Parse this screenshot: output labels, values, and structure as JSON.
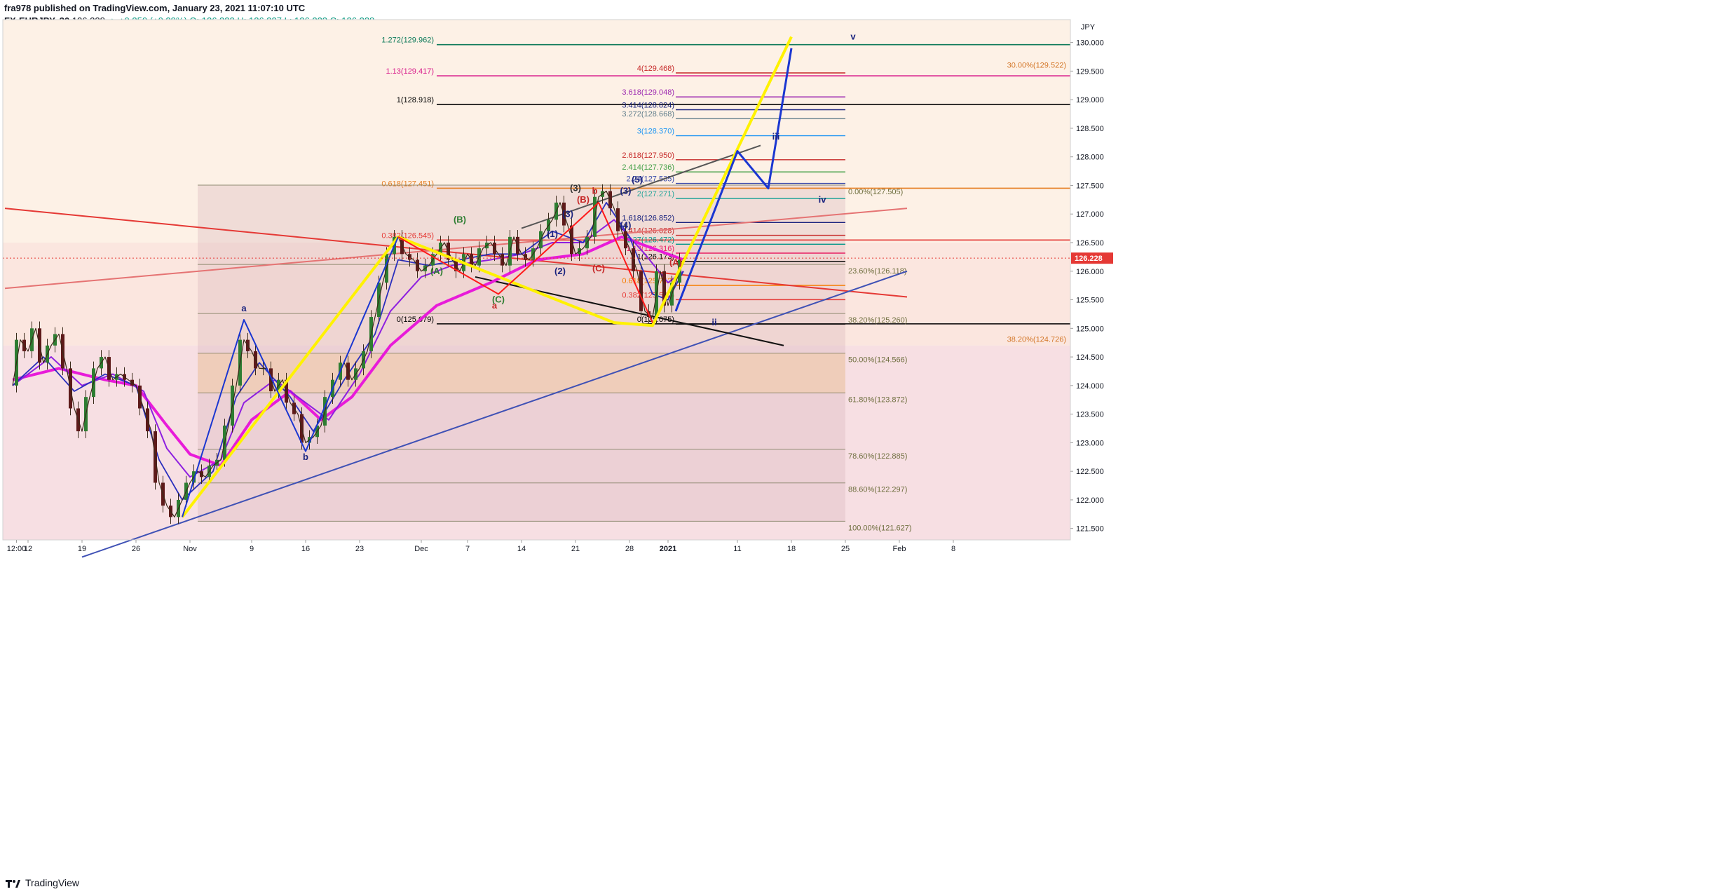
{
  "header": {
    "publisher_line": "fra978 published on TradingView.com, January 23, 2021 11:07:10 UTC",
    "symbol": "FX:EURJPY, 30",
    "last": "126.228",
    "change": "▲ +0.350 (+0.28%)",
    "open": "O: 126.322",
    "high": "H: 126.337",
    "low": "L: 126.223",
    "close": "C: 126.228"
  },
  "footer": {
    "brand": "TradingView"
  },
  "chart_data": {
    "type": "line",
    "currency": "JPY",
    "last_price": 126.228,
    "last_price_label": "126.228",
    "ylim": [
      121.3,
      130.4
    ],
    "y_ticks": [
      121.5,
      122.0,
      122.5,
      123.0,
      123.5,
      124.0,
      124.5,
      125.0,
      125.5,
      126.0,
      126.5,
      127.0,
      127.5,
      128.0,
      128.5,
      129.0,
      129.5,
      130.0
    ],
    "y_tick_labels": [
      "121.500",
      "122.000",
      "122.500",
      "123.000",
      "123.500",
      "124.000",
      "124.500",
      "125.000",
      "125.500",
      "126.000",
      "126.500",
      "127.000",
      "127.500",
      "128.000",
      "128.500",
      "129.000",
      "129.500",
      "130.000"
    ],
    "x_ticks": [
      {
        "label": "12:00",
        "d": 0.5
      },
      {
        "label": "12",
        "d": 2
      },
      {
        "label": "19",
        "d": 9
      },
      {
        "label": "26",
        "d": 16
      },
      {
        "label": "Nov",
        "d": 23
      },
      {
        "label": "9",
        "d": 31
      },
      {
        "label": "16",
        "d": 38
      },
      {
        "label": "23",
        "d": 45
      },
      {
        "label": "Dec",
        "d": 53
      },
      {
        "label": "7",
        "d": 59
      },
      {
        "label": "14",
        "d": 66
      },
      {
        "label": "21",
        "d": 73
      },
      {
        "label": "28",
        "d": 80
      },
      {
        "label": "2021",
        "d": 85
      },
      {
        "label": "11",
        "d": 94
      },
      {
        "label": "18",
        "d": 101
      },
      {
        "label": "25",
        "d": 108
      },
      {
        "label": "Feb",
        "d": 115
      },
      {
        "label": "8",
        "d": 122
      }
    ],
    "price_series": {
      "name": "EURJPY",
      "points": [
        [
          0,
          124.0
        ],
        [
          1,
          124.8
        ],
        [
          2,
          124.6
        ],
        [
          3,
          125.0
        ],
        [
          4,
          124.4
        ],
        [
          5,
          124.7
        ],
        [
          6,
          124.9
        ],
        [
          7,
          124.3
        ],
        [
          8,
          123.6
        ],
        [
          9,
          123.2
        ],
        [
          10,
          123.8
        ],
        [
          11,
          124.3
        ],
        [
          12,
          124.5
        ],
        [
          13,
          124.1
        ],
        [
          14,
          124.2
        ],
        [
          15,
          124.1
        ],
        [
          16,
          124.0
        ],
        [
          17,
          123.6
        ],
        [
          18,
          123.2
        ],
        [
          19,
          122.3
        ],
        [
          20,
          121.9
        ],
        [
          21,
          121.7
        ],
        [
          22,
          122.0
        ],
        [
          23,
          122.3
        ],
        [
          24,
          122.5
        ],
        [
          25,
          122.4
        ],
        [
          26,
          122.6
        ],
        [
          27,
          122.7
        ],
        [
          28,
          123.3
        ],
        [
          29,
          124.0
        ],
        [
          30,
          124.8
        ],
        [
          31,
          124.6
        ],
        [
          32,
          124.3
        ],
        [
          33,
          124.3
        ],
        [
          34,
          123.9
        ],
        [
          35,
          124.1
        ],
        [
          36,
          123.7
        ],
        [
          37,
          123.5
        ],
        [
          38,
          123.0
        ],
        [
          39,
          123.1
        ],
        [
          40,
          123.3
        ],
        [
          41,
          123.8
        ],
        [
          42,
          124.1
        ],
        [
          43,
          124.4
        ],
        [
          44,
          124.1
        ],
        [
          45,
          124.3
        ],
        [
          46,
          124.6
        ],
        [
          47,
          125.2
        ],
        [
          48,
          125.8
        ],
        [
          49,
          126.3
        ],
        [
          50,
          126.6
        ],
        [
          51,
          126.3
        ],
        [
          52,
          126.2
        ],
        [
          53,
          126.0
        ],
        [
          54,
          126.1
        ],
        [
          55,
          126.3
        ],
        [
          56,
          126.5
        ],
        [
          57,
          126.2
        ],
        [
          58,
          126.0
        ],
        [
          59,
          126.3
        ],
        [
          60,
          126.1
        ],
        [
          61,
          126.4
        ],
        [
          62,
          126.5
        ],
        [
          63,
          126.3
        ],
        [
          64,
          126.1
        ],
        [
          65,
          126.6
        ],
        [
          66,
          126.3
        ],
        [
          67,
          126.2
        ],
        [
          68,
          126.4
        ],
        [
          69,
          126.7
        ],
        [
          70,
          126.9
        ],
        [
          71,
          127.2
        ],
        [
          72,
          126.8
        ],
        [
          73,
          126.3
        ],
        [
          74,
          126.4
        ],
        [
          75,
          126.6
        ],
        [
          76,
          127.3
        ],
        [
          77,
          127.4
        ],
        [
          78,
          127.1
        ],
        [
          79,
          126.7
        ],
        [
          80,
          126.4
        ],
        [
          81,
          126.0
        ],
        [
          82,
          125.3
        ],
        [
          83,
          125.2
        ],
        [
          84,
          126.0
        ],
        [
          85,
          125.4
        ],
        [
          86,
          125.8
        ],
        [
          87,
          126.2
        ]
      ]
    },
    "ma_fast": {
      "name": "MA fast",
      "color": "#2a2fbd",
      "points": [
        [
          0,
          124.0
        ],
        [
          4,
          124.5
        ],
        [
          8,
          123.9
        ],
        [
          12,
          124.2
        ],
        [
          16,
          124.0
        ],
        [
          19,
          122.7
        ],
        [
          22,
          122.0
        ],
        [
          26,
          122.5
        ],
        [
          29,
          123.8
        ],
        [
          32,
          124.4
        ],
        [
          36,
          123.8
        ],
        [
          39,
          123.2
        ],
        [
          43,
          124.1
        ],
        [
          47,
          124.9
        ],
        [
          50,
          126.2
        ],
        [
          54,
          126.1
        ],
        [
          58,
          126.2
        ],
        [
          62,
          126.3
        ],
        [
          66,
          126.3
        ],
        [
          70,
          126.7
        ],
        [
          74,
          126.5
        ],
        [
          77,
          127.2
        ],
        [
          80,
          126.6
        ],
        [
          83,
          125.6
        ],
        [
          85,
          125.5
        ],
        [
          87,
          126.0
        ]
      ]
    },
    "ma_mid": {
      "name": "MA mid",
      "color": "#8e1fe0",
      "points": [
        [
          0,
          124.0
        ],
        [
          5,
          124.5
        ],
        [
          9,
          124.0
        ],
        [
          13,
          124.2
        ],
        [
          17,
          123.9
        ],
        [
          20,
          122.9
        ],
        [
          23,
          122.4
        ],
        [
          27,
          122.7
        ],
        [
          30,
          123.7
        ],
        [
          34,
          124.1
        ],
        [
          38,
          123.7
        ],
        [
          41,
          123.4
        ],
        [
          45,
          124.2
        ],
        [
          49,
          125.3
        ],
        [
          53,
          125.9
        ],
        [
          57,
          126.1
        ],
        [
          62,
          126.2
        ],
        [
          66,
          126.3
        ],
        [
          70,
          126.5
        ],
        [
          74,
          126.5
        ],
        [
          78,
          126.9
        ],
        [
          82,
          126.3
        ],
        [
          85,
          125.8
        ],
        [
          87,
          126.0
        ]
      ]
    },
    "ma_slow": {
      "name": "MA slow",
      "color": "#e81bd9",
      "points": [
        [
          0,
          124.1
        ],
        [
          6,
          124.3
        ],
        [
          12,
          124.1
        ],
        [
          16,
          124.0
        ],
        [
          20,
          123.3
        ],
        [
          23,
          122.8
        ],
        [
          27,
          122.6
        ],
        [
          31,
          123.4
        ],
        [
          36,
          123.9
        ],
        [
          40,
          123.4
        ],
        [
          44,
          123.8
        ],
        [
          49,
          124.7
        ],
        [
          55,
          125.4
        ],
        [
          62,
          125.8
        ],
        [
          68,
          126.2
        ],
        [
          74,
          126.3
        ],
        [
          79,
          126.6
        ],
        [
          83,
          126.4
        ],
        [
          87,
          126.2
        ]
      ]
    },
    "trend_lines": [
      {
        "name": "red-descending",
        "color": "#e53935",
        "from": [
          -1,
          127.1
        ],
        "to": [
          116,
          125.55
        ]
      },
      {
        "name": "red-ascending",
        "color": "#e57373",
        "from": [
          -1,
          125.7
        ],
        "to": [
          116,
          127.1
        ]
      },
      {
        "name": "blue-support",
        "color": "#3f51b5",
        "from": [
          9,
          121.0
        ],
        "to": [
          116,
          126.0
        ]
      },
      {
        "name": "upper-channel",
        "color": "#555555",
        "from": [
          66,
          126.75
        ],
        "to": [
          97,
          128.2
        ]
      },
      {
        "name": "lower-channel",
        "color": "#111111",
        "from": [
          60,
          125.9
        ],
        "to": [
          100,
          124.7
        ]
      }
    ],
    "fib_levels": [
      {
        "label": "1.272(129.962)",
        "value": 129.962,
        "color": "#0e7a5a"
      },
      {
        "label": "1.13(129.417)",
        "value": 129.417,
        "color": "#d81b8b"
      },
      {
        "label": "1(128.918)",
        "value": 128.918,
        "color": "#000000"
      },
      {
        "label": "0.618(127.451)",
        "value": 127.451,
        "color": "#e67e22"
      },
      {
        "label": "0.382(126.545)",
        "value": 126.545,
        "color": "#e53935"
      },
      {
        "label": "0(125.079)",
        "value": 125.079,
        "color": "#000000"
      }
    ],
    "ext_levels": [
      {
        "label": "4(129.468)",
        "value": 129.468,
        "color": "#c62828"
      },
      {
        "label": "3.618(129.048)",
        "value": 129.048,
        "color": "#9c27b0"
      },
      {
        "label": "3.414(128.824)",
        "value": 128.824,
        "color": "#1a237e"
      },
      {
        "label": "3.272(128.668)",
        "value": 128.668,
        "color": "#607d8b"
      },
      {
        "label": "3(128.370)",
        "value": 128.37,
        "color": "#2196f3"
      },
      {
        "label": "2.618(127.950)",
        "value": 127.95,
        "color": "#c62828"
      },
      {
        "label": "2.414(127.736)",
        "value": 127.736,
        "color": "#43a047"
      },
      {
        "label": "2.24(127.535)",
        "value": 127.535,
        "color": "#3949ab"
      },
      {
        "label": "2(127.271)",
        "value": 127.271,
        "color": "#26a69a"
      },
      {
        "label": "1.618(126.852)",
        "value": 126.852,
        "color": "#1a237e"
      },
      {
        "label": "1.414(126.628)",
        "value": 126.628,
        "color": "#c62828"
      },
      {
        "label": "1.27(126.472)",
        "value": 126.472,
        "color": "#009688"
      },
      {
        "label": "1.13(126.316)",
        "value": 126.316,
        "color": "#e91e63"
      },
      {
        "label": "1(126.173)",
        "value": 126.173,
        "color": "#000000"
      },
      {
        "label": "0.618(125.752)",
        "value": 125.752,
        "color": "#f57c00"
      },
      {
        "label": "0.382(125.502)",
        "value": 125.502,
        "color": "#e53935"
      },
      {
        "label": "0(125.075)",
        "value": 125.075,
        "color": "#000000"
      }
    ],
    "retrace_levels": [
      {
        "label": "0.00%(127.505)",
        "value": 127.505
      },
      {
        "label": "23.60%(126.118)",
        "value": 126.118
      },
      {
        "label": "38.20%(125.260)",
        "value": 125.26
      },
      {
        "label": "50.00%(124.566)",
        "value": 124.566
      },
      {
        "label": "61.80%(123.872)",
        "value": 123.872
      },
      {
        "label": "78.60%(122.885)",
        "value": 122.885
      },
      {
        "label": "88.60%(122.297)",
        "value": 122.297
      },
      {
        "label": "100.00%(121.627)",
        "value": 121.627
      }
    ],
    "upper_right_labels": [
      {
        "label": "30.00%(129.522)",
        "value": 129.522
      },
      {
        "label": "38.20%(124.726)",
        "value": 124.726
      }
    ],
    "wave_paths": {
      "yellow": [
        [
          22,
          121.7
        ],
        [
          50,
          126.6
        ],
        [
          78,
          125.1
        ],
        [
          83,
          125.05
        ],
        [
          101,
          130.1
        ]
      ],
      "blue_abc": [
        [
          22,
          121.7
        ],
        [
          30,
          125.15
        ],
        [
          38,
          122.85
        ],
        [
          50,
          126.6
        ]
      ],
      "red_abc": [
        [
          50,
          126.6
        ],
        [
          63,
          125.6
        ],
        [
          76,
          127.2
        ],
        [
          83,
          125.1
        ]
      ],
      "blue_projection": [
        [
          86,
          125.3
        ],
        [
          94,
          128.1
        ],
        [
          98,
          127.45
        ],
        [
          101,
          129.9
        ]
      ]
    },
    "wave_labels": [
      {
        "text": "a",
        "d": 30,
        "v": 125.3,
        "color": "#1a237e"
      },
      {
        "text": "b",
        "d": 38,
        "v": 122.7,
        "color": "#1a237e"
      },
      {
        "text": "a",
        "d": 62.5,
        "v": 125.35,
        "color": "#c62828"
      },
      {
        "text": "b",
        "d": 75.5,
        "v": 127.35,
        "color": "#c62828"
      },
      {
        "text": "(A)",
        "d": 55,
        "v": 125.95,
        "color": "#2e7d32"
      },
      {
        "text": "(B)",
        "d": 58,
        "v": 126.85,
        "color": "#2e7d32"
      },
      {
        "text": "(C)",
        "d": 63,
        "v": 125.45,
        "color": "#2e7d32"
      },
      {
        "text": "(1)",
        "d": 70,
        "v": 126.6,
        "color": "#1a237e"
      },
      {
        "text": "(2)",
        "d": 71,
        "v": 125.95,
        "color": "#1a237e"
      },
      {
        "text": "(3)",
        "d": 72,
        "v": 126.95,
        "color": "#1a237e"
      },
      {
        "text": "(3)",
        "d": 73,
        "v": 127.4,
        "color": "#333333"
      },
      {
        "text": "(B)",
        "d": 74,
        "v": 127.2,
        "color": "#c62828"
      },
      {
        "text": "(C)",
        "d": 76,
        "v": 126.0,
        "color": "#c62828"
      },
      {
        "text": "(3)",
        "d": 79.5,
        "v": 127.35,
        "color": "#1a237e"
      },
      {
        "text": "(5)",
        "d": 81,
        "v": 127.55,
        "color": "#1a237e"
      },
      {
        "text": "(4)",
        "d": 79.5,
        "v": 126.75,
        "color": "#1a237e"
      },
      {
        "text": "(A)",
        "d": 86,
        "v": 126.1,
        "color": "#c62828"
      },
      {
        "text": "ii",
        "d": 91,
        "v": 125.05,
        "color": "#1a237e"
      },
      {
        "text": "iii",
        "d": 99,
        "v": 128.3,
        "color": "#1a237e"
      },
      {
        "text": "iv",
        "d": 105,
        "v": 127.2,
        "color": "#1a237e"
      },
      {
        "text": "v",
        "d": 109,
        "v": 130.05,
        "color": "#1a237e"
      }
    ]
  }
}
